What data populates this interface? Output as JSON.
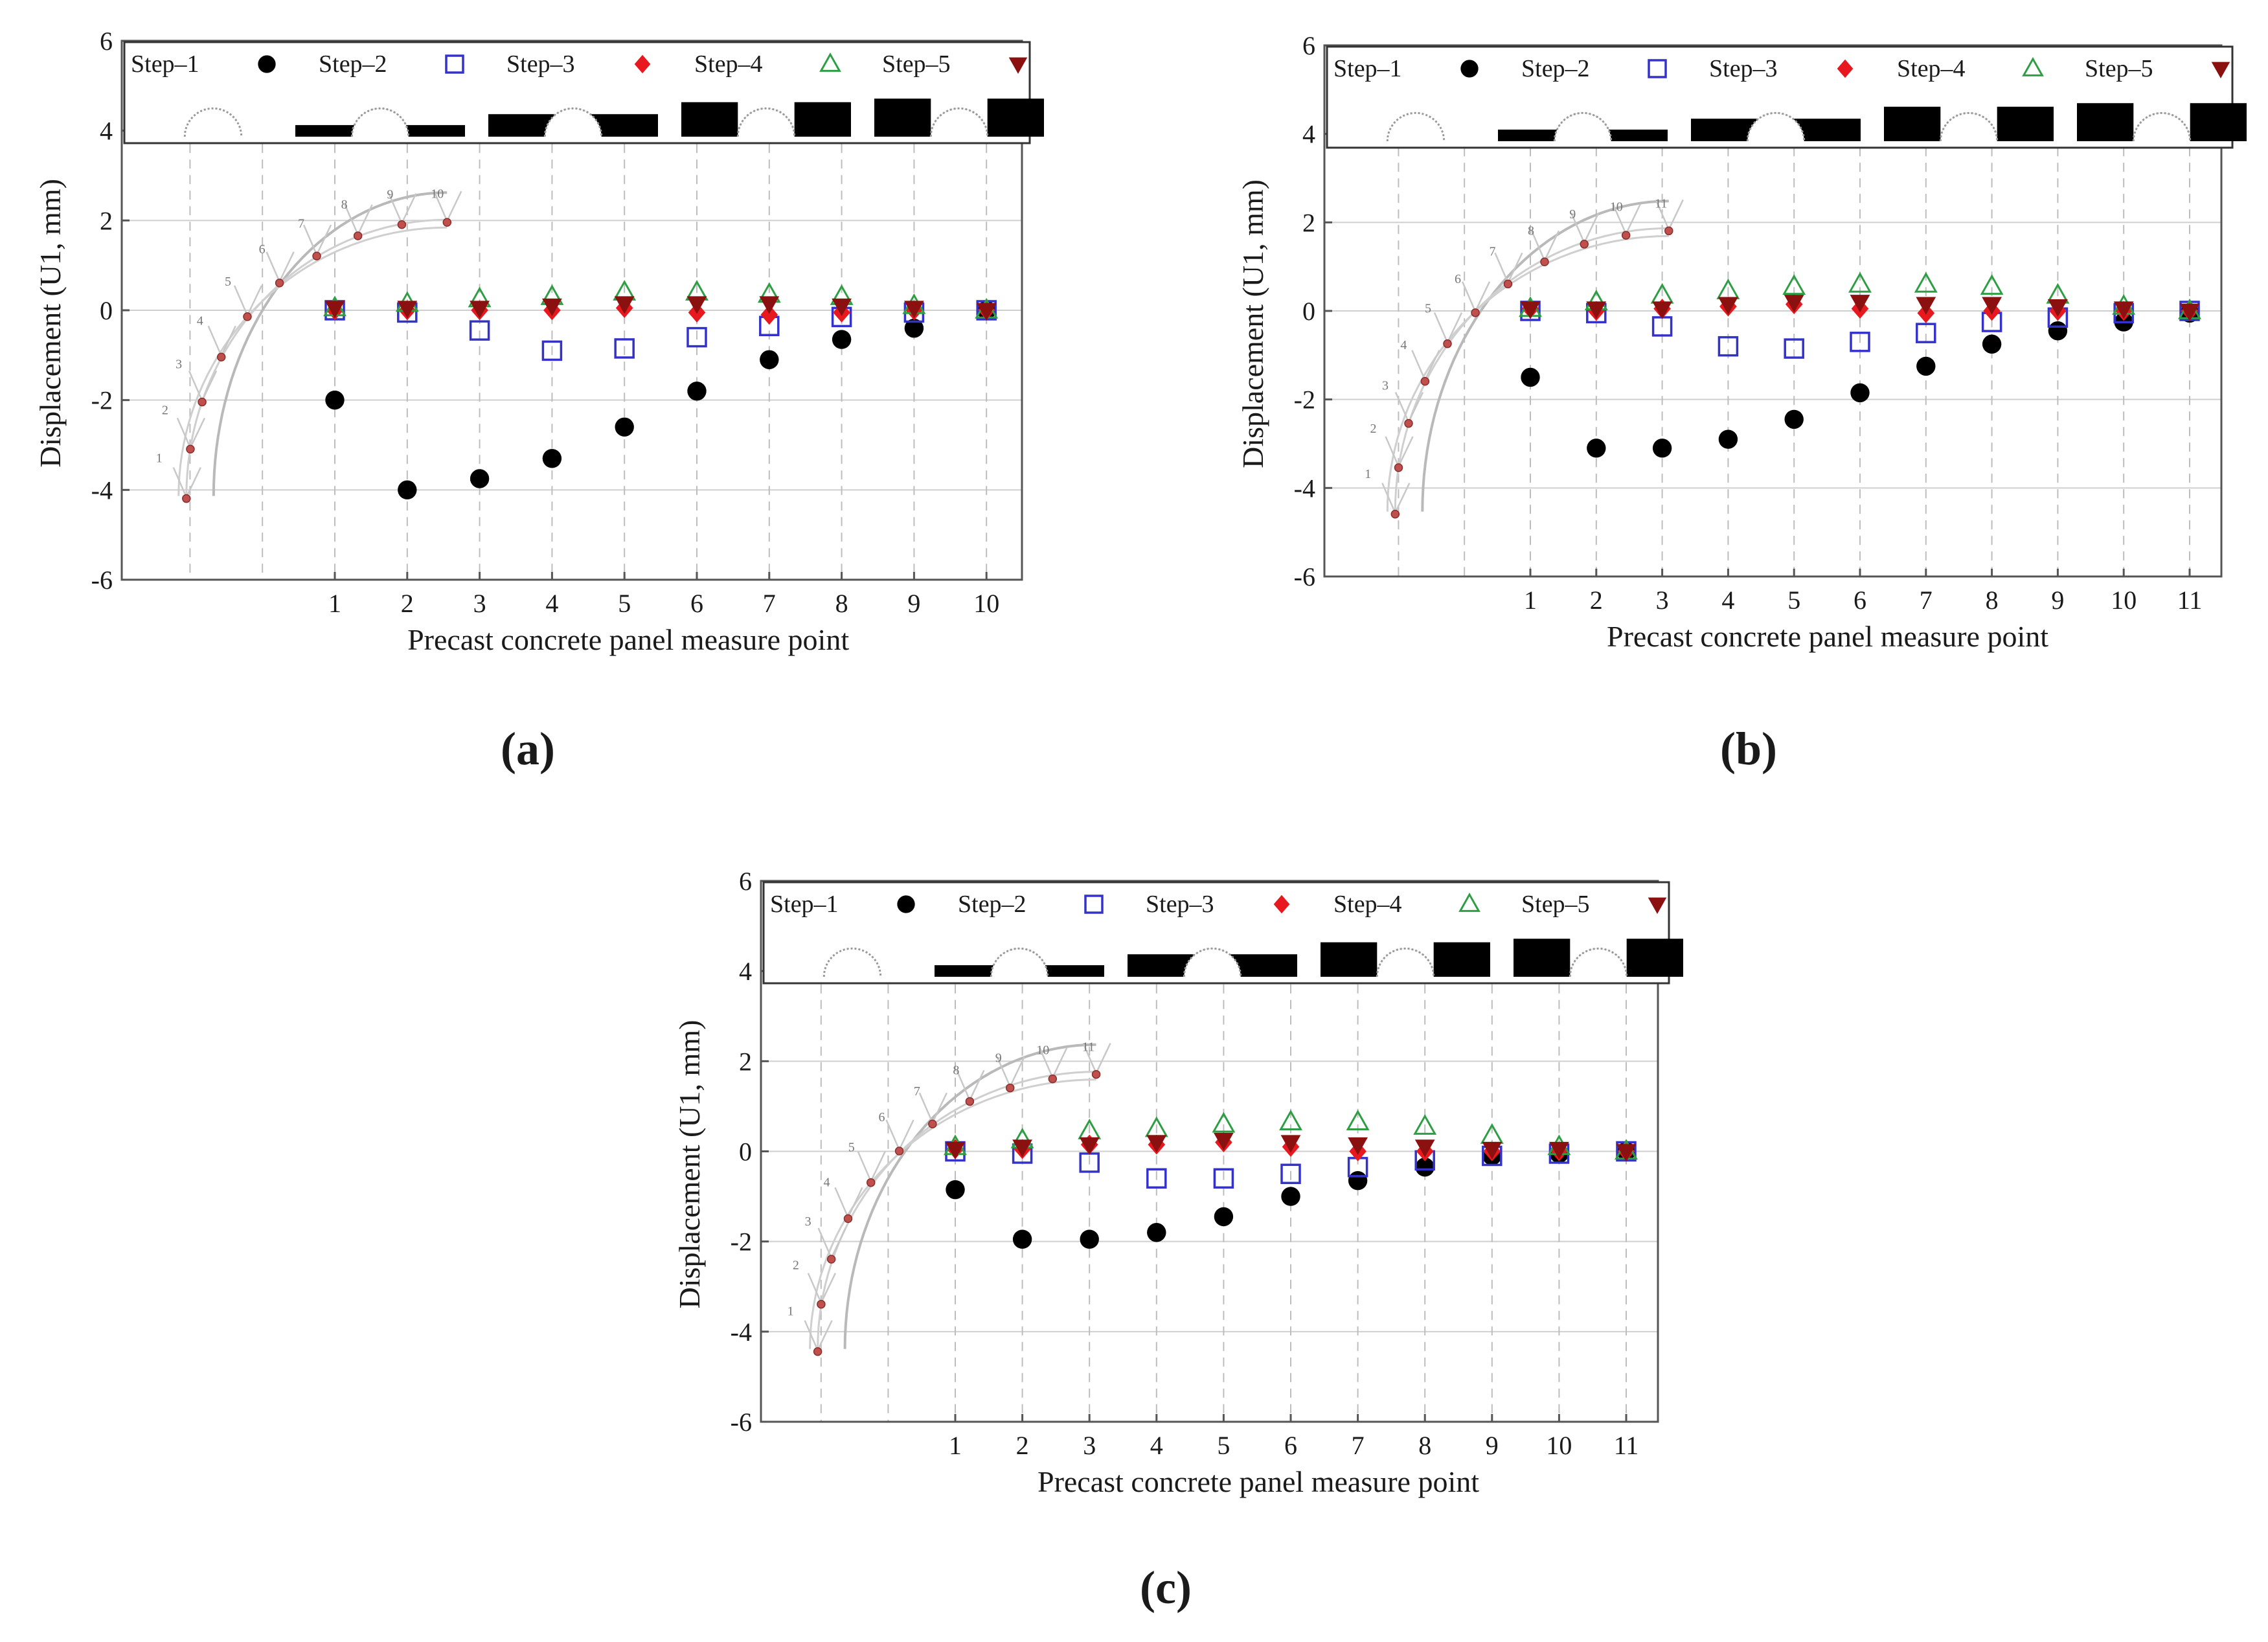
{
  "chart_data": [
    {
      "panel_label": "(a)",
      "type": "scatter",
      "xlabel": "Precast concrete panel measure point",
      "ylabel": "Displacement (U1, mm)",
      "ylim": [
        -6,
        6
      ],
      "yticks": [
        -6,
        -4,
        -2,
        0,
        2,
        4,
        6
      ],
      "x": [
        1,
        2,
        3,
        4,
        5,
        6,
        7,
        8,
        9,
        10
      ],
      "xtick_labels": [
        "1",
        "2",
        "3",
        "4",
        "5",
        "6",
        "7",
        "8",
        "9",
        "10"
      ],
      "segment_labels": [
        "1",
        "2",
        "3",
        "4",
        "5",
        "6",
        "7",
        "8",
        "9",
        "10"
      ],
      "grid": "horizontal",
      "series": [
        {
          "name": "Step–1",
          "values": [
            -2.0,
            -4.0,
            -3.75,
            -3.3,
            -2.6,
            -1.8,
            -1.1,
            -0.65,
            -0.4,
            0.0
          ]
        },
        {
          "name": "Step–2",
          "values": [
            0.0,
            -0.05,
            -0.45,
            -0.9,
            -0.85,
            -0.6,
            -0.35,
            -0.15,
            -0.05,
            0.0
          ]
        },
        {
          "name": "Step–3",
          "values": [
            0.0,
            0.0,
            0.0,
            0.0,
            0.05,
            -0.05,
            -0.1,
            -0.05,
            0.0,
            0.0
          ]
        },
        {
          "name": "Step–4",
          "values": [
            0.05,
            0.15,
            0.25,
            0.3,
            0.4,
            0.4,
            0.35,
            0.3,
            0.1,
            0.0
          ]
        },
        {
          "name": "Step–5",
          "values": [
            0.05,
            0.05,
            0.05,
            0.1,
            0.15,
            0.15,
            0.15,
            0.1,
            0.05,
            0.0
          ]
        }
      ],
      "inset_gauge_values": [
        -4.25,
        -3.15,
        -2.1,
        -1.1,
        -0.2,
        0.55,
        1.15,
        1.6,
        1.85,
        1.9
      ]
    },
    {
      "panel_label": "(b)",
      "type": "scatter",
      "xlabel": "Precast concrete panel measure point",
      "ylabel": "Displacement (U1, mm)",
      "ylim": [
        -6,
        6
      ],
      "yticks": [
        -6,
        -4,
        -2,
        0,
        2,
        4,
        6
      ],
      "x": [
        1,
        2,
        3,
        4,
        5,
        6,
        7,
        8,
        9,
        10,
        11
      ],
      "xtick_labels": [
        "1",
        "2",
        "3",
        "4",
        "5",
        "6",
        "7",
        "8",
        "9",
        "10",
        "11"
      ],
      "segment_labels": [
        "1",
        "2",
        "3",
        "4",
        "5",
        "6",
        "7",
        "8",
        "9",
        "10",
        "11"
      ],
      "grid": "horizontal",
      "series": [
        {
          "name": "Step–1",
          "values": [
            -1.5,
            -3.1,
            -3.1,
            -2.9,
            -2.45,
            -1.85,
            -1.25,
            -0.75,
            -0.45,
            -0.25,
            -0.05
          ]
        },
        {
          "name": "Step–2",
          "values": [
            0.0,
            -0.05,
            -0.35,
            -0.8,
            -0.85,
            -0.7,
            -0.5,
            -0.25,
            -0.15,
            -0.05,
            0.0
          ]
        },
        {
          "name": "Step–3",
          "values": [
            0.05,
            0.0,
            0.05,
            0.1,
            0.15,
            0.05,
            -0.05,
            0.0,
            0.0,
            0.0,
            0.0
          ]
        },
        {
          "name": "Step–4",
          "values": [
            0.05,
            0.2,
            0.35,
            0.45,
            0.55,
            0.6,
            0.6,
            0.55,
            0.35,
            0.1,
            0.0
          ]
        },
        {
          "name": "Step–5",
          "values": [
            0.05,
            0.05,
            0.05,
            0.15,
            0.2,
            0.2,
            0.15,
            0.15,
            0.1,
            0.05,
            0.0
          ]
        }
      ],
      "inset_gauge_values": [
        -4.65,
        -3.6,
        -2.6,
        -1.65,
        -0.8,
        -0.1,
        0.55,
        1.05,
        1.45,
        1.65,
        1.75
      ]
    },
    {
      "panel_label": "(c)",
      "type": "scatter",
      "xlabel": "Precast concrete panel measure point",
      "ylabel": "Displacement (U1, mm)",
      "ylim": [
        -6,
        6
      ],
      "yticks": [
        -6,
        -4,
        -2,
        0,
        2,
        4,
        6
      ],
      "x": [
        1,
        2,
        3,
        4,
        5,
        6,
        7,
        8,
        9,
        10,
        11
      ],
      "xtick_labels": [
        "1",
        "2",
        "3",
        "4",
        "5",
        "6",
        "7",
        "8",
        "9",
        "10",
        "11"
      ],
      "segment_labels": [
        "1",
        "2",
        "3",
        "4",
        "5",
        "6",
        "7",
        "8",
        "9",
        "10",
        "11"
      ],
      "grid": "horizontal",
      "series": [
        {
          "name": "Step–1",
          "values": [
            -0.85,
            -1.95,
            -1.95,
            -1.8,
            -1.45,
            -1.0,
            -0.65,
            -0.35,
            -0.1,
            -0.05,
            0.0
          ]
        },
        {
          "name": "Step–2",
          "values": [
            0.0,
            -0.05,
            -0.25,
            -0.6,
            -0.6,
            -0.5,
            -0.35,
            -0.2,
            -0.1,
            -0.05,
            0.0
          ]
        },
        {
          "name": "Step–3",
          "values": [
            0.05,
            0.05,
            0.15,
            0.15,
            0.2,
            0.1,
            0.0,
            0.0,
            0.0,
            0.0,
            0.0
          ]
        },
        {
          "name": "Step–4",
          "values": [
            0.1,
            0.25,
            0.45,
            0.5,
            0.6,
            0.65,
            0.65,
            0.55,
            0.35,
            0.1,
            0.0
          ]
        },
        {
          "name": "Step–5",
          "values": [
            0.05,
            0.1,
            0.15,
            0.2,
            0.25,
            0.2,
            0.15,
            0.1,
            0.05,
            0.05,
            0.0
          ]
        }
      ],
      "inset_gauge_values": [
        -4.5,
        -3.45,
        -2.45,
        -1.55,
        -0.75,
        -0.05,
        0.55,
        1.05,
        1.35,
        1.55,
        1.65
      ]
    }
  ],
  "legend": {
    "markers": [
      "circle-filled",
      "square-open",
      "diamond-filled",
      "triangle-open",
      "triangle-down-filled"
    ],
    "colors": [
      "#000000",
      "#3333cc",
      "#e8191e",
      "#2e9e44",
      "#8b1010"
    ],
    "stages_icons": [
      "stage-1-arch-only",
      "stage-2-thin-fill",
      "stage-3-half-fill",
      "stage-4-mostly-filled",
      "stage-5-full-cover"
    ]
  }
}
